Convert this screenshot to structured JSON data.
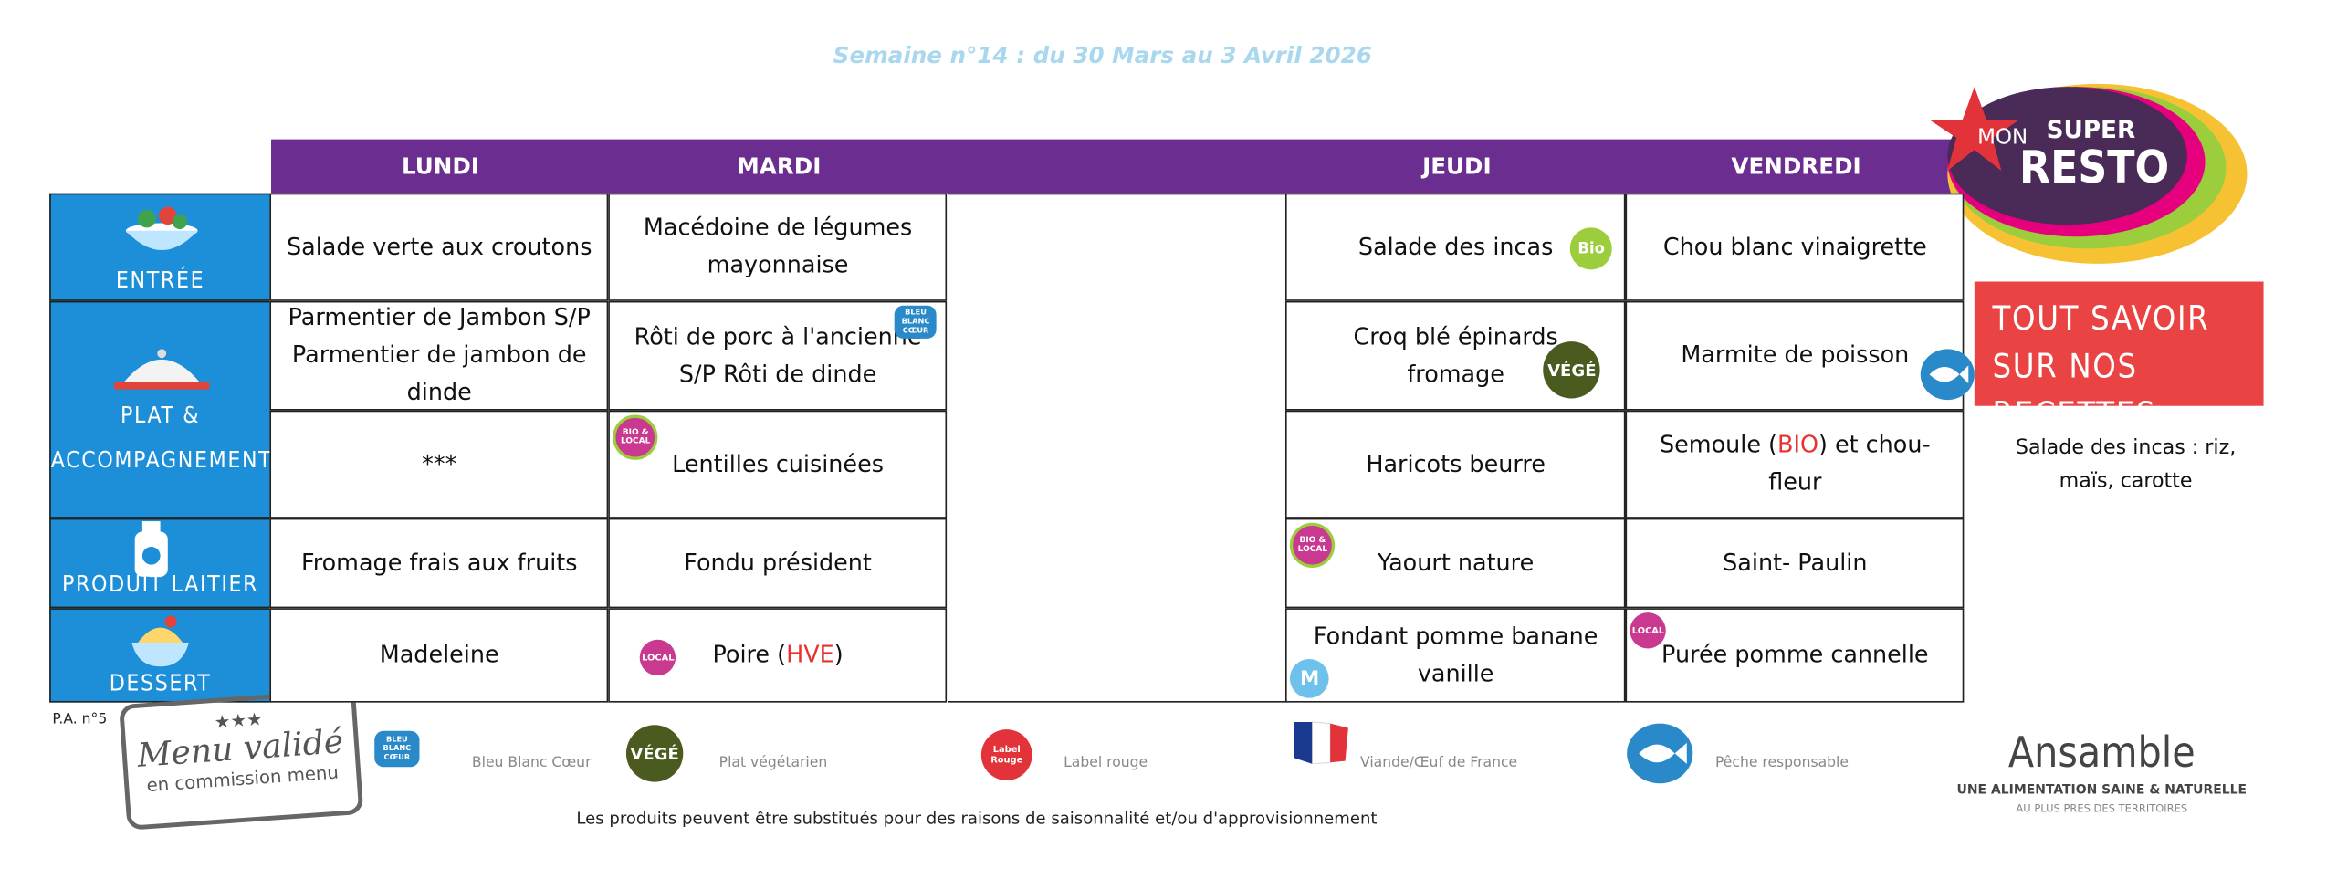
{
  "title": "Semaine n°14 : du 30 Mars au 3 Avril 2026",
  "days": [
    "LUNDI",
    "MARDI",
    "JEUDI",
    "VENDREDI"
  ],
  "row_labels": [
    "ENTRÉE",
    "PLAT &",
    "ACCOMPAGNEMENT",
    "PRODUIT LAITIER",
    "DESSERT"
  ],
  "menu": [
    [
      {
        "text": "Salade verte aux croutons"
      },
      {
        "text": "Macédoine de légumes mayonnaise"
      },
      {
        "text": "Salade des incas",
        "badge": "Bio"
      },
      {
        "text": "Chou blanc vinaigrette"
      }
    ],
    [
      {
        "text": "Parmentier de Jambon S/P Parmentier de jambon de dinde"
      },
      {
        "text": "Rôti de porc à l'ancienne S/P Rôti de dinde",
        "badge": "BLEU BLANC CŒUR"
      },
      {
        "text": "Croq blé épinards fromage",
        "badge": "VÉGÉ"
      },
      {
        "text": "Marmite de poisson"
      }
    ],
    [
      {
        "text": "***"
      },
      {
        "text": "Lentilles cuisinées",
        "badge": "BIO & LOCAL"
      },
      {
        "text": "Haricots beurre"
      },
      {
        "parts": [
          "Semoule (",
          "BIO",
          ") et chou-fleur"
        ]
      }
    ],
    [
      {
        "text": "Fromage frais aux fruits"
      },
      {
        "text": "Fondu président"
      },
      {
        "text": "Yaourt nature",
        "badge": "BIO & LOCAL"
      },
      {
        "text": "Saint- Paulin"
      }
    ],
    [
      {
        "text": "Madeleine"
      },
      {
        "parts": [
          "Poire (",
          "HVE",
          ")"
        ],
        "badge": "LOCAL"
      },
      {
        "text": "Fondant pomme banane vanille",
        "badge": "M"
      },
      {
        "text": "Purée pomme cannelle",
        "badge": "LOCAL"
      }
    ]
  ],
  "logo": [
    "MON",
    "SUPER",
    "RESTO"
  ],
  "recipes_box": "TOUT SAVOIR SUR NOS RECETTES",
  "recipe_note": "Salade des incas : riz, maïs, carotte",
  "pa": "P.A. n°5",
  "stamp": [
    "Menu validé",
    "en commission menu"
  ],
  "legend": [
    {
      "icon": "BLEU BLANC CŒUR",
      "label": "Bleu Blanc Cœur"
    },
    {
      "icon": "VÉGÉ",
      "label": "Plat végétarien"
    },
    {
      "icon": "Label Rouge",
      "label": "Label rouge"
    },
    {
      "label": "Viande/Œuf de France"
    },
    {
      "label": "Pêche responsable"
    }
  ],
  "footnote": "Les produits peuvent être substitués pour des raisons de saisonnalité et/ou d'approvisionnement",
  "ansamble": [
    "Ansamble",
    "UNE ALIMENTATION SAINE & NATURELLE",
    "AU PLUS PRES DES TERRITOIRES"
  ]
}
